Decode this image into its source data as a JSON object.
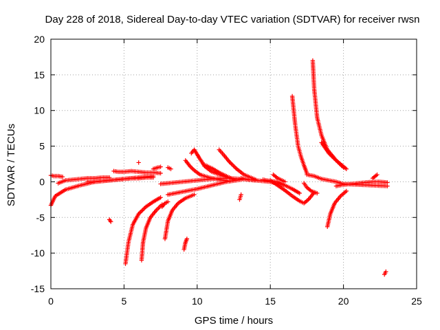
{
  "chart_data": {
    "type": "scatter",
    "title": "Day 228 of 2018, Sidereal Day-to-day VTEC variation (SDTVAR) for receiver rwsn",
    "xlabel": "GPS time / hours",
    "ylabel": "SDTVAR / TECUs",
    "xlim": [
      0,
      25
    ],
    "ylim": [
      -15,
      20
    ],
    "xticks": [
      "0",
      "5",
      "10",
      "15",
      "20",
      "25"
    ],
    "yticks": [
      "-15",
      "-10",
      "-5",
      "0",
      "5",
      "10",
      "15",
      "20"
    ],
    "grid": true,
    "marker": "+",
    "color": "#ff0000",
    "segments": [
      {
        "x": [
          0.0,
          0.3,
          1.0,
          2.0,
          3.0,
          4.0,
          5.0,
          6.0,
          7.0
        ],
        "y": [
          -3.3,
          -2.0,
          -1.1,
          -0.5,
          0.0,
          0.2,
          0.4,
          0.6,
          0.8
        ]
      },
      {
        "x": [
          0.0,
          0.2,
          0.5,
          0.8
        ],
        "y": [
          0.9,
          0.8,
          0.8,
          0.7
        ]
      },
      {
        "x": [
          0.5,
          1.0,
          1.5,
          2.0,
          2.5,
          3.0,
          3.5,
          4.0
        ],
        "y": [
          -0.2,
          0.2,
          0.3,
          0.4,
          0.5,
          0.5,
          0.6,
          0.6
        ]
      },
      {
        "x": [
          2.5,
          3.0,
          3.5,
          4.0,
          4.5,
          5.0,
          5.5,
          6.0,
          6.5,
          7.0
        ],
        "y": [
          0.0,
          0.0,
          0.1,
          0.2,
          0.3,
          0.4,
          0.5,
          0.5,
          0.6,
          0.6
        ]
      },
      {
        "x": [
          4.0,
          4.1
        ],
        "y": [
          -5.3,
          -5.6
        ]
      },
      {
        "x": [
          4.3,
          4.6,
          5.0,
          5.5,
          6.0,
          6.5,
          7.0,
          7.5
        ],
        "y": [
          1.5,
          1.4,
          1.4,
          1.5,
          1.4,
          1.3,
          1.3,
          1.2
        ]
      },
      {
        "x": [
          5.1,
          5.3,
          5.6,
          6.0,
          6.5,
          7.0,
          7.5
        ],
        "y": [
          -11.5,
          -8.5,
          -6.0,
          -4.5,
          -3.5,
          -2.8,
          -2.2
        ]
      },
      {
        "x": [
          6.2,
          6.3,
          6.5,
          6.8,
          7.2,
          7.6
        ],
        "y": [
          -11.0,
          -8.5,
          -6.5,
          -5.0,
          -4.0,
          -3.2
        ]
      },
      {
        "x": [
          6.0
        ],
        "y": [
          2.7
        ]
      },
      {
        "x": [
          7.0,
          7.3,
          7.5
        ],
        "y": [
          1.8,
          2.0,
          2.1
        ]
      },
      {
        "x": [
          7.6,
          7.8,
          8.0
        ],
        "y": [
          -3.5,
          -3.0,
          -2.8
        ]
      },
      {
        "x": [
          8.0,
          8.2
        ],
        "y": [
          2.0,
          1.8
        ]
      },
      {
        "x": [
          7.8,
          8.0,
          8.3,
          8.7,
          9.2,
          9.8
        ],
        "y": [
          -8.0,
          -5.5,
          -4.0,
          -3.0,
          -2.3,
          -1.8
        ]
      },
      {
        "x": [
          8.0,
          9.0,
          10.0,
          11.0,
          12.0,
          13.0
        ],
        "y": [
          -1.8,
          -1.4,
          -1.0,
          -0.5,
          0.0,
          0.3
        ]
      },
      {
        "x": [
          7.5,
          8.0,
          9.0,
          10.0,
          11.0,
          12.0,
          13.0,
          14.0,
          15.0,
          16.0
        ],
        "y": [
          -0.3,
          -0.2,
          0.0,
          0.2,
          0.4,
          0.5,
          0.4,
          0.2,
          0.0,
          -0.5
        ]
      },
      {
        "x": [
          9.1,
          9.2,
          9.3
        ],
        "y": [
          -9.5,
          -8.5,
          -8.0
        ]
      },
      {
        "x": [
          9.2,
          9.5,
          9.8,
          10.2,
          10.8,
          11.5,
          12.2
        ],
        "y": [
          3.0,
          2.2,
          1.6,
          1.0,
          0.6,
          0.3,
          0.1
        ]
      },
      {
        "x": [
          9.6,
          9.8,
          10.1,
          10.5,
          11.0,
          11.8,
          12.5
        ],
        "y": [
          4.0,
          4.5,
          3.5,
          2.2,
          1.4,
          0.8,
          0.4
        ]
      },
      {
        "x": [
          10.5,
          11.0,
          11.5,
          12.0,
          12.5
        ],
        "y": [
          2.4,
          1.9,
          1.3,
          0.8,
          0.3
        ]
      },
      {
        "x": [
          11.5,
          11.8,
          12.2,
          12.7,
          13.2,
          14.0
        ],
        "y": [
          4.5,
          3.8,
          2.8,
          1.8,
          1.0,
          0.3
        ]
      },
      {
        "x": [
          13.0,
          13.5,
          14.0
        ],
        "y": [
          0.5,
          0.3,
          0.2
        ]
      },
      {
        "x": [
          12.9,
          13.0
        ],
        "y": [
          -2.5,
          -1.8
        ]
      },
      {
        "x": [
          14.5,
          15.0,
          15.5,
          16.0,
          16.5,
          17.0
        ],
        "y": [
          0.3,
          0.1,
          0.0,
          -0.5,
          -1.0,
          -1.6
        ]
      },
      {
        "x": [
          15.0,
          15.5,
          16.0,
          16.5,
          17.0,
          17.3,
          17.6,
          18.0
        ],
        "y": [
          0.2,
          -0.5,
          -1.2,
          -2.0,
          -2.7,
          -3.0,
          -2.5,
          -1.5
        ]
      },
      {
        "x": [
          15.2,
          15.5,
          16.0
        ],
        "y": [
          1.0,
          0.5,
          0.0
        ]
      },
      {
        "x": [
          16.5,
          16.7,
          16.9,
          17.1,
          17.3,
          17.5
        ],
        "y": [
          12.0,
          8.0,
          5.0,
          3.5,
          2.3,
          1.2
        ]
      },
      {
        "x": [
          17.3,
          17.5,
          17.8,
          18.2
        ],
        "y": [
          -0.2,
          -0.8,
          -1.3,
          -1.6
        ]
      },
      {
        "x": [
          17.5,
          18.0,
          18.5,
          19.0,
          19.5,
          20.0,
          21.0,
          22.0,
          23.0
        ],
        "y": [
          1.0,
          0.8,
          0.4,
          0.2,
          0.0,
          -0.3,
          -0.4,
          -0.5,
          -0.6
        ]
      },
      {
        "x": [
          17.9,
          18.0,
          18.2,
          18.5,
          18.9,
          19.5,
          20.2
        ],
        "y": [
          17.0,
          13.0,
          9.0,
          6.5,
          4.5,
          3.0,
          1.8
        ]
      },
      {
        "x": [
          18.5,
          19.0,
          19.5,
          20.0
        ],
        "y": [
          5.5,
          4.0,
          3.0,
          2.0
        ]
      },
      {
        "x": [
          18.9,
          19.1,
          19.4,
          19.8,
          20.2
        ],
        "y": [
          -6.3,
          -4.5,
          -3.0,
          -2.0,
          -1.3
        ]
      },
      {
        "x": [
          19.5,
          20.0,
          20.5,
          21.0,
          21.5,
          22.0,
          22.5,
          23.0
        ],
        "y": [
          -0.6,
          -0.4,
          -0.3,
          -0.2,
          -0.1,
          0.0,
          0.0,
          -0.1
        ]
      },
      {
        "x": [
          22.0,
          22.3
        ],
        "y": [
          0.5,
          1.0
        ]
      },
      {
        "x": [
          22.8,
          22.9
        ],
        "y": [
          -13.0,
          -12.6
        ]
      }
    ]
  }
}
